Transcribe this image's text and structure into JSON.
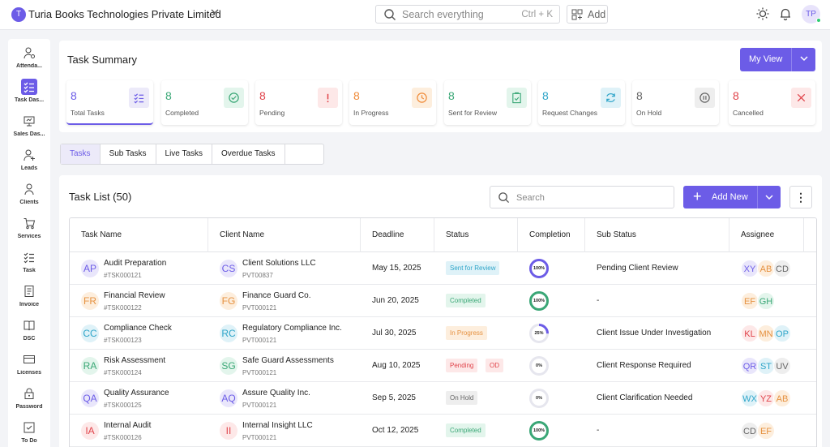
{
  "org": {
    "initial": "T",
    "name": "Turia Books Technologies Private Limited"
  },
  "search": {
    "placeholder": "Search everything",
    "shortcut": "Ctrl + K"
  },
  "add_label": "Add",
  "user": {
    "initials": "TP"
  },
  "sidebar": {
    "items": [
      {
        "label": "Attenda...",
        "icon": "attendance-icon"
      },
      {
        "label": "Task Das...",
        "icon": "task-dashboard-icon"
      },
      {
        "label": "Sales Das...",
        "icon": "sales-dashboard-icon"
      },
      {
        "label": "Leads",
        "icon": "leads-icon"
      },
      {
        "label": "Clients",
        "icon": "clients-icon"
      },
      {
        "label": "Services",
        "icon": "cart-icon"
      },
      {
        "label": "Task",
        "icon": "task-icon"
      },
      {
        "label": "Invoice",
        "icon": "invoice-icon"
      },
      {
        "label": "DSC",
        "icon": "book-icon"
      },
      {
        "label": "Licenses",
        "icon": "card-icon"
      },
      {
        "label": "Password",
        "icon": "lock-icon"
      },
      {
        "label": "To Do",
        "icon": "checkbox-icon"
      }
    ]
  },
  "summary": {
    "title": "Task Summary",
    "view_label": "My View",
    "stats": [
      {
        "num": "8",
        "label": "Total Tasks",
        "color": "#6c5ce7",
        "bg": "#eceaf9",
        "icon": "list-check-icon"
      },
      {
        "num": "8",
        "label": "Completed",
        "color": "#3aa776",
        "bg": "#e3f5ec",
        "icon": "check-circle-icon"
      },
      {
        "num": "8",
        "label": "Pending",
        "color": "#e0434a",
        "bg": "#fde8e8",
        "icon": "exclamation-icon"
      },
      {
        "num": "8",
        "label": "In Progress",
        "color": "#f08c3a",
        "bg": "#fdeedd",
        "icon": "clock-icon"
      },
      {
        "num": "8",
        "label": "Sent for Review",
        "color": "#3aa776",
        "bg": "#e3f5ec",
        "icon": "clipboard-check-icon"
      },
      {
        "num": "8",
        "label": "Request Changes",
        "color": "#2fa5c9",
        "bg": "#dff2f8",
        "icon": "refresh-icon"
      },
      {
        "num": "8",
        "label": "On Hold",
        "color": "#666666",
        "bg": "#eeeeee",
        "icon": "pause-icon"
      },
      {
        "num": "8",
        "label": "Cancelled",
        "color": "#e0434a",
        "bg": "#fde8e8",
        "icon": "close-icon"
      }
    ]
  },
  "tabs": [
    "Tasks",
    "Sub Tasks",
    "Live Tasks",
    "Overdue Tasks"
  ],
  "tasklist": {
    "title": "Task List (50)",
    "search_placeholder": "Search",
    "add_label": "Add New",
    "columns": [
      "Task Name",
      "Client Name",
      "Deadline",
      "Status",
      "Completion",
      "Sub Status",
      "Assignee"
    ],
    "rows": [
      {
        "task_initials": "AP",
        "task": "Audit Preparation",
        "task_id": "#TSK000121",
        "client_initials": "CS",
        "client": "Client Solutions LLC",
        "client_id": "PVT00837",
        "deadline": "May 15, 2025",
        "status": "Sent for Review",
        "extra_badge": "",
        "completion": 100,
        "completion_label": "100%",
        "sub_status": "Pending Client Review",
        "assignees": [
          "XY",
          "AB",
          "CD"
        ]
      },
      {
        "task_initials": "FR",
        "task": "Financial Review",
        "task_id": "#TSK000122",
        "client_initials": "FG",
        "client": "Finance Guard Co.",
        "client_id": "PVT000121",
        "deadline": "Jun 20, 2025",
        "status": "Completed",
        "extra_badge": "",
        "completion": 100,
        "completion_label": "100%",
        "sub_status": "-",
        "assignees": [
          "EF",
          "GH"
        ]
      },
      {
        "task_initials": "CC",
        "task": "Compliance Check",
        "task_id": "#TSK000123",
        "client_initials": "RC",
        "client": "Regulatory Compliance Inc.",
        "client_id": "PVT000121",
        "deadline": "Jul 30, 2025",
        "status": "In Progress",
        "extra_badge": "",
        "completion": 25,
        "completion_label": "25%",
        "sub_status": "Client Issue Under Investigation",
        "assignees": [
          "KL",
          "MN",
          "OP"
        ]
      },
      {
        "task_initials": "RA",
        "task": "Risk Assessment",
        "task_id": "#TSK000124",
        "client_initials": "SG",
        "client": "Safe Guard Assessments",
        "client_id": "PVT000121",
        "deadline": "Aug 10, 2025",
        "status": "Pending",
        "extra_badge": "OD",
        "completion": 0,
        "completion_label": "0%",
        "sub_status": "Client Response Required",
        "assignees": [
          "QR",
          "ST",
          "UV"
        ]
      },
      {
        "task_initials": "QA",
        "task": "Quality Assurance",
        "task_id": "#TSK000125",
        "client_initials": "AQ",
        "client": "Assure Quality Inc.",
        "client_id": "PVT000121",
        "deadline": "Sep 5, 2025",
        "status": "On Hold",
        "extra_badge": "",
        "completion": 0,
        "completion_label": "0%",
        "sub_status": "Client Clarification Needed",
        "assignees": [
          "WX",
          "YZ",
          "AB"
        ]
      },
      {
        "task_initials": "IA",
        "task": "Internal Audit",
        "task_id": "#TSK000126",
        "client_initials": "II",
        "client": "Internal Insight LLC",
        "client_id": "PVT000121",
        "deadline": "Oct 12, 2025",
        "status": "Completed",
        "extra_badge": "",
        "completion": 100,
        "completion_label": "100%",
        "sub_status": "-",
        "assignees": [
          "CD",
          "EF"
        ]
      }
    ]
  }
}
